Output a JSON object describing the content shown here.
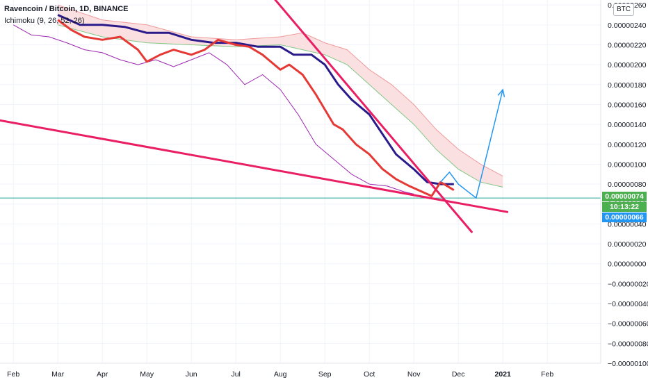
{
  "header": {
    "title": "Ravencoin / Bitcoin, 1D, BINANCE",
    "indicator": "Ichimoku (9, 26, 52, 26)",
    "currency": "BTC"
  },
  "tags": {
    "last_price": "0.00000074",
    "countdown": "10:13:22",
    "support_price": "0.00000066"
  },
  "colors": {
    "price_red": "#e53935",
    "base_navy": "#2a1a8a",
    "lagging_purple": "#9c27b0",
    "cloud_fill": "#fadadd",
    "trend_pink": "#e91e63",
    "projection_blue": "#2196f3",
    "support_teal": "#26a69a",
    "tag_green": "#4caf50",
    "tag_blue": "#2196f3"
  },
  "chart_data": {
    "type": "line",
    "y_axis_ticks": [
      "0.00000260",
      "0.00000240",
      "0.00000220",
      "0.00000200",
      "0.00000180",
      "0.00000160",
      "0.00000140",
      "0.00000120",
      "0.00000100",
      "0.00000080",
      "0.00000060",
      "0.00000040",
      "0.00000020",
      "0.00000000",
      "−0.00000020",
      "−0.00000040",
      "−0.00000060",
      "−0.00000080",
      "−0.00000100"
    ],
    "x_axis_ticks": [
      "Feb",
      "Mar",
      "Apr",
      "May",
      "Jun",
      "Jul",
      "Aug",
      "Sep",
      "Oct",
      "Nov",
      "Dec",
      "2021",
      "Feb"
    ],
    "x_tick_t": [
      0.0,
      1.0,
      2.0,
      3.0,
      4.0,
      5.0,
      6.0,
      7.0,
      8.0,
      9.0,
      10.0,
      11.0,
      12.0
    ],
    "ylim": [
      -1e-06,
      2.65e-06
    ],
    "xlim": [
      -0.3,
      13.2
    ],
    "grid": true,
    "series": [
      {
        "key": "price",
        "x": [
          1.0,
          1.3,
          1.6,
          2.0,
          2.4,
          2.8,
          3.0,
          3.3,
          3.6,
          4.0,
          4.3,
          4.6,
          5.0,
          5.3,
          5.6,
          6.0,
          6.2,
          6.5,
          6.8,
          7.0,
          7.2,
          7.4,
          7.7,
          8.0,
          8.3,
          8.6,
          8.9,
          9.2,
          9.4,
          9.6,
          9.9
        ],
        "y": [
          2.45e-06,
          2.35e-06,
          2.28e-06,
          2.25e-06,
          2.28e-06,
          2.15e-06,
          2.03e-06,
          2.1e-06,
          2.15e-06,
          2.1e-06,
          2.15e-06,
          2.25e-06,
          2.2e-06,
          2.18e-06,
          2.1e-06,
          1.95e-06,
          2e-06,
          1.9e-06,
          1.7e-06,
          1.55e-06,
          1.4e-06,
          1.35e-06,
          1.2e-06,
          1.1e-06,
          9.5e-07,
          8.5e-07,
          7.8e-07,
          7.2e-07,
          6.8e-07,
          8.2e-07,
          7.4e-07
        ]
      },
      {
        "key": "base",
        "x": [
          1.0,
          1.5,
          2.0,
          2.5,
          3.0,
          3.5,
          4.0,
          4.5,
          5.0,
          5.5,
          6.0,
          6.3,
          6.7,
          7.0,
          7.3,
          7.6,
          8.0,
          8.3,
          8.6,
          9.0,
          9.3,
          9.6,
          9.9
        ],
        "y": [
          2.5e-06,
          2.4e-06,
          2.4e-06,
          2.38e-06,
          2.32e-06,
          2.32e-06,
          2.25e-06,
          2.22e-06,
          2.22e-06,
          2.18e-06,
          2.18e-06,
          2.1e-06,
          2.1e-06,
          2e-06,
          1.8e-06,
          1.65e-06,
          1.5e-06,
          1.3e-06,
          1.1e-06,
          9.5e-07,
          8.2e-07,
          8e-07,
          8e-07
        ]
      },
      {
        "key": "lagging",
        "x": [
          0.0,
          0.4,
          0.8,
          1.2,
          1.6,
          2.0,
          2.4,
          2.8,
          3.2,
          3.6,
          4.0,
          4.4,
          4.8,
          5.2,
          5.6,
          6.0,
          6.4,
          6.8,
          7.2,
          7.6,
          8.0,
          8.4,
          8.8,
          9.0
        ],
        "y": [
          2.4e-06,
          2.3e-06,
          2.28e-06,
          2.22e-06,
          2.15e-06,
          2.12e-06,
          2.05e-06,
          2e-06,
          2.05e-06,
          1.98e-06,
          2.05e-06,
          2.12e-06,
          2e-06,
          1.8e-06,
          1.9e-06,
          1.75e-06,
          1.5e-06,
          1.2e-06,
          1.05e-06,
          9e-07,
          8e-07,
          7.8e-07,
          7.2e-07,
          7e-07
        ]
      }
    ],
    "cloud": {
      "x": [
        1.0,
        2.0,
        3.0,
        4.0,
        5.0,
        6.0,
        6.5,
        7.0,
        7.5,
        8.0,
        8.5,
        9.0,
        9.5,
        10.0,
        10.5,
        11.0
      ],
      "span_a": [
        2.6e-06,
        2.45e-06,
        2.4e-06,
        2.28e-06,
        2.25e-06,
        2.28e-06,
        2.32e-06,
        2.22e-06,
        2.15e-06,
        1.95e-06,
        1.8e-06,
        1.6e-06,
        1.35e-06,
        1.15e-06,
        1e-06,
        8.8e-07
      ],
      "span_b": [
        2.4e-06,
        2.28e-06,
        2.22e-06,
        2.2e-06,
        2.18e-06,
        2.2e-06,
        2.15e-06,
        2.1e-06,
        2e-06,
        1.8e-06,
        1.6e-06,
        1.4e-06,
        1.15e-06,
        9.5e-07,
        8.2e-07,
        7.7e-07
      ]
    },
    "annotations": {
      "upper_trendline": {
        "x": [
          5.7,
          10.3
        ],
        "y": [
          2.75e-06,
          3.2e-07
        ]
      },
      "lower_trendline": {
        "x": [
          -0.3,
          11.1
        ],
        "y": [
          1.44e-06,
          5.2e-07
        ]
      },
      "support_level": 6.6e-07,
      "projection": {
        "x": [
          9.6,
          9.8,
          10.0,
          10.4,
          11.0
        ],
        "y": [
          8.2e-07,
          9.2e-07,
          8e-07,
          6.6e-07,
          1.75e-06
        ]
      }
    }
  }
}
